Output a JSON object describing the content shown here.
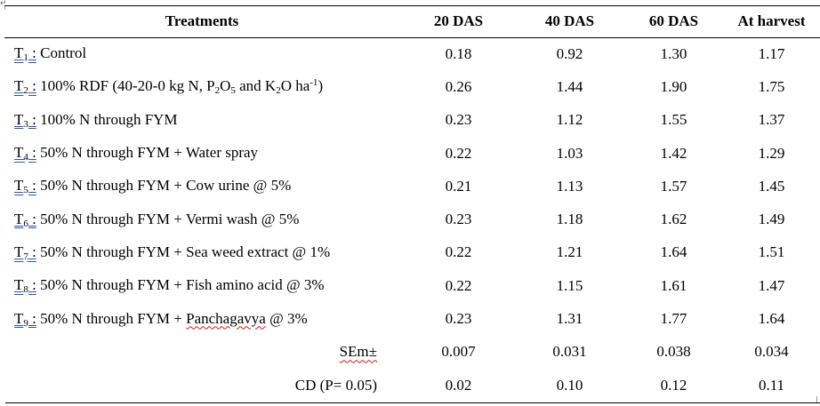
{
  "anchor_mark": "↵",
  "headers": {
    "treatments": "Treatments",
    "das20": "20 DAS",
    "das40": "40 DAS",
    "das60": "60 DAS",
    "harvest": "At harvest"
  },
  "rows": [
    {
      "code": "T",
      "num": "1",
      "colon": " :",
      "desc": " Control",
      "v20": "0.18",
      "v40": "0.92",
      "v60": "1.30",
      "vh": "1.17"
    },
    {
      "code": "T",
      "num": "2",
      "colon": " :",
      "desc": " 100% RDF (40-20-0 kg N, P",
      "p_sub": "2",
      "o_text": "O",
      "o_sub": "5",
      "and_k": " and K",
      "k_sub": "2",
      "o2_text": "O ha",
      "exp": "-1",
      "close": ")",
      "v20": "0.26",
      "v40": "1.44",
      "v60": "1.90",
      "vh": "1.75"
    },
    {
      "code": "T",
      "num": "3",
      "colon": " :",
      "desc": " 100% N through FYM",
      "v20": "0.23",
      "v40": "1.12",
      "v60": "1.55",
      "vh": "1.37"
    },
    {
      "code": "T",
      "num": "4",
      "colon": " :",
      "desc": " 50% N through FYM + Water spray",
      "v20": "0.22",
      "v40": "1.03",
      "v60": "1.42",
      "vh": "1.29"
    },
    {
      "code": "T",
      "num": "5",
      "colon": " :",
      "desc": " 50% N through FYM + Cow urine @ 5%",
      "v20": "0.21",
      "v40": "1.13",
      "v60": "1.57",
      "vh": "1.45"
    },
    {
      "code": "T",
      "num": "6",
      "colon": " :",
      "desc": " 50% N through FYM + Vermi wash @ 5%",
      "v20": "0.23",
      "v40": "1.18",
      "v60": "1.62",
      "vh": "1.49"
    },
    {
      "code": "T",
      "num": "7",
      "colon": " :",
      "desc": " 50% N through FYM + Sea weed extract @ 1%",
      "v20": "0.22",
      "v40": "1.21",
      "v60": "1.64",
      "vh": "1.51"
    },
    {
      "code": "T",
      "num": "8",
      "colon": " :",
      "desc": " 50% N through FYM + Fish amino acid @ 3%",
      "v20": "0.22",
      "v40": "1.15",
      "v60": "1.61",
      "vh": "1.47"
    },
    {
      "code": "T",
      "num": "9",
      "colon": " :",
      "desc": " 50% N through FYM + ",
      "desc_sq": "Panchagavya",
      "desc_end": " @ 3%",
      "v20": "0.23",
      "v40": "1.31",
      "v60": "1.77",
      "vh": "1.64"
    }
  ],
  "sem": {
    "label": "SEm±",
    "v20": "0.007",
    "v40": "0.031",
    "v60": "0.038",
    "vh": "0.034"
  },
  "cd": {
    "label": "CD (P= 0.05)",
    "v20": "0.02",
    "v40": "0.10",
    "v60": "0.12",
    "vh": "0.11"
  }
}
